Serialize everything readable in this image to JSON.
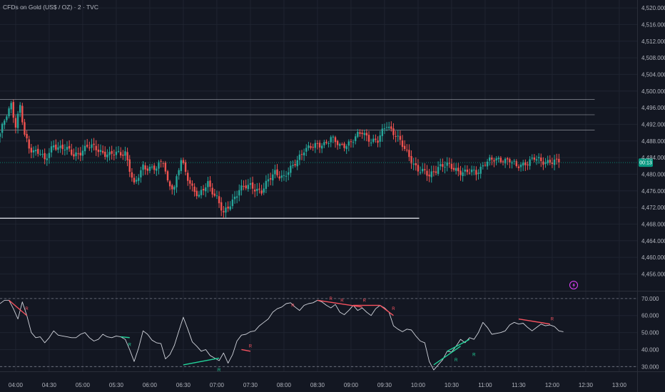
{
  "chart_data": {
    "type": "candlestick",
    "title": "CFDs on Gold (US$ / OZ) · 2 · TVC",
    "colors": {
      "background": "#131722",
      "grid": "#1f2431",
      "up": "#26a69a",
      "down": "#ef5350",
      "level_line": "#d1d4dc",
      "rsi_line": "#d1d4dc",
      "bull_div": "#22d39a",
      "bear_div": "#f7525f",
      "price_tag": "#089981",
      "alert": "#e040fb"
    },
    "price_axis": {
      "ticks": [
        "4,520.000",
        "4,516.000",
        "4,512.000",
        "4,508.000",
        "4,504.000",
        "4,500.000",
        "4,496.000",
        "4,492.000",
        "4,488.000",
        "4,484.000",
        "4,480.000",
        "4,476.000",
        "4,472.000",
        "4,468.000",
        "4,464.000",
        "4,460.000",
        "4,456.000"
      ],
      "range": [
        4452.3,
        4521.9
      ],
      "current_price": 4482.8,
      "current_tag": "00:13"
    },
    "time_axis": {
      "ticks": [
        "04:00",
        "04:30",
        "05:00",
        "05:30",
        "06:00",
        "06:30",
        "07:00",
        "07:30",
        "08:00",
        "08:30",
        "09:00",
        "09:30",
        "10:00",
        "10:30",
        "11:00",
        "11:30",
        "12:00",
        "12:30",
        "13:00"
      ],
      "start": "03:46",
      "end": "13:16"
    },
    "levels": [
      {
        "price": 4498.0,
        "from": "03:46",
        "to": "12:38"
      },
      {
        "price": 4494.3,
        "from": "03:46",
        "to": "12:38"
      },
      {
        "price": 4490.6,
        "from": "03:46",
        "to": "12:38"
      },
      {
        "price": 4469.4,
        "from": "03:46",
        "to": "10:01"
      }
    ],
    "anchors": [
      [
        "03:46",
        4489.4
      ],
      [
        "03:52",
        4494.4
      ],
      [
        "03:56",
        4497.0
      ],
      [
        "04:00",
        4491.9
      ],
      [
        "04:04",
        4496.2
      ],
      [
        "04:08",
        4489.2
      ],
      [
        "04:12",
        4486.2
      ],
      [
        "04:22",
        4485.4
      ],
      [
        "04:26",
        4482.9
      ],
      [
        "04:34",
        4487.1
      ],
      [
        "04:44",
        4486.2
      ],
      [
        "04:52",
        4484.5
      ],
      [
        "05:04",
        4486.6
      ],
      [
        "05:12",
        4486.2
      ],
      [
        "05:24",
        4484.5
      ],
      [
        "05:38",
        4485.4
      ],
      [
        "05:46",
        4477.0
      ],
      [
        "05:54",
        4482.0
      ],
      [
        "06:06",
        4481.2
      ],
      [
        "06:12",
        4483.3
      ],
      [
        "06:16",
        4478.3
      ],
      [
        "06:22",
        4476.6
      ],
      [
        "06:28",
        4483.3
      ],
      [
        "06:32",
        4480.4
      ],
      [
        "06:38",
        4477.0
      ],
      [
        "06:44",
        4474.5
      ],
      [
        "06:52",
        4477.8
      ],
      [
        "07:00",
        4474.5
      ],
      [
        "07:06",
        4470.2
      ],
      [
        "07:12",
        4472.7
      ],
      [
        "07:20",
        4476.6
      ],
      [
        "07:30",
        4477.0
      ],
      [
        "07:40",
        4476.1
      ],
      [
        "07:52",
        4480.4
      ],
      [
        "08:00",
        4479.5
      ],
      [
        "08:08",
        4481.6
      ],
      [
        "08:18",
        4486.2
      ],
      [
        "08:28",
        4486.6
      ],
      [
        "08:36",
        4487.5
      ],
      [
        "08:42",
        4488.7
      ],
      [
        "08:50",
        4486.6
      ],
      [
        "09:00",
        4487.9
      ],
      [
        "09:10",
        4490.0
      ],
      [
        "09:18",
        4488.3
      ],
      [
        "09:24",
        4487.9
      ],
      [
        "09:32",
        4492.0
      ],
      [
        "09:40",
        4489.6
      ],
      [
        "09:48",
        4485.8
      ],
      [
        "10:00",
        4481.2
      ],
      [
        "10:10",
        4479.5
      ],
      [
        "10:18",
        4482.0
      ],
      [
        "10:26",
        4482.0
      ],
      [
        "10:34",
        4481.2
      ],
      [
        "10:42",
        4480.4
      ],
      [
        "10:52",
        4480.4
      ],
      [
        "11:00",
        4482.9
      ],
      [
        "11:08",
        4483.3
      ],
      [
        "11:16",
        4483.7
      ],
      [
        "11:22",
        4483.3
      ],
      [
        "11:28",
        4481.6
      ],
      [
        "11:36",
        4482.9
      ],
      [
        "11:44",
        4483.7
      ],
      [
        "11:50",
        4482.9
      ],
      [
        "11:58",
        4483.3
      ],
      [
        "12:06",
        4482.8
      ]
    ],
    "rsi": {
      "axis_ticks": [
        "70.000",
        "60.000",
        "50.000",
        "40.000",
        "30.000"
      ],
      "range": [
        27.2,
        73.3
      ],
      "levels": [
        70,
        30
      ],
      "series": [
        [
          "03:46",
          67
        ],
        [
          "03:50",
          69
        ],
        [
          "03:54",
          69
        ],
        [
          "03:58",
          64
        ],
        [
          "04:02",
          58
        ],
        [
          "04:06",
          68
        ],
        [
          "04:10",
          60
        ],
        [
          "04:14",
          50
        ],
        [
          "04:18",
          47
        ],
        [
          "04:22",
          47.5
        ],
        [
          "04:26",
          44
        ],
        [
          "04:30",
          47
        ],
        [
          "04:34",
          51
        ],
        [
          "04:38",
          48.5
        ],
        [
          "04:42",
          48
        ],
        [
          "04:46",
          47.5
        ],
        [
          "04:50",
          47
        ],
        [
          "04:54",
          47
        ],
        [
          "04:58",
          49
        ],
        [
          "05:02",
          50
        ],
        [
          "05:06",
          47
        ],
        [
          "05:10",
          45
        ],
        [
          "05:14",
          46
        ],
        [
          "05:18",
          49
        ],
        [
          "05:22",
          47.5
        ],
        [
          "05:26",
          47
        ],
        [
          "05:30",
          48
        ],
        [
          "05:34",
          47.5
        ],
        [
          "05:38",
          46
        ],
        [
          "05:42",
          40
        ],
        [
          "05:46",
          33
        ],
        [
          "05:50",
          41
        ],
        [
          "05:54",
          51
        ],
        [
          "05:58",
          49
        ],
        [
          "06:02",
          45.5
        ],
        [
          "06:06",
          44
        ],
        [
          "06:10",
          43.5
        ],
        [
          "06:14",
          34.5
        ],
        [
          "06:18",
          37
        ],
        [
          "06:22",
          42.5
        ],
        [
          "06:26",
          51
        ],
        [
          "06:30",
          59
        ],
        [
          "06:34",
          52
        ],
        [
          "06:38",
          44.5
        ],
        [
          "06:42",
          42
        ],
        [
          "06:46",
          39
        ],
        [
          "06:50",
          40
        ],
        [
          "06:54",
          36.5
        ],
        [
          "06:58",
          35
        ],
        [
          "07:02",
          33.5
        ],
        [
          "07:06",
          38
        ],
        [
          "07:10",
          32
        ],
        [
          "07:14",
          37
        ],
        [
          "07:18",
          45
        ],
        [
          "07:22",
          48.5
        ],
        [
          "07:26",
          49
        ],
        [
          "07:30",
          50.5
        ],
        [
          "07:34",
          51
        ],
        [
          "07:38",
          54
        ],
        [
          "07:42",
          56
        ],
        [
          "07:46",
          58
        ],
        [
          "07:50",
          62
        ],
        [
          "07:54",
          64
        ],
        [
          "07:58",
          65
        ],
        [
          "08:02",
          67
        ],
        [
          "08:06",
          67.5
        ],
        [
          "08:10",
          65
        ],
        [
          "08:14",
          63
        ],
        [
          "08:18",
          66
        ],
        [
          "08:22",
          67
        ],
        [
          "08:26",
          67.5
        ],
        [
          "08:30",
          69
        ],
        [
          "08:34",
          68
        ],
        [
          "08:38",
          66
        ],
        [
          "08:42",
          64.5
        ],
        [
          "08:46",
          66.5
        ],
        [
          "08:50",
          62
        ],
        [
          "08:54",
          60.5
        ],
        [
          "08:58",
          63
        ],
        [
          "09:02",
          66
        ],
        [
          "09:06",
          63
        ],
        [
          "09:10",
          64.5
        ],
        [
          "09:14",
          62
        ],
        [
          "09:18",
          60
        ],
        [
          "09:22",
          64
        ],
        [
          "09:26",
          66
        ],
        [
          "09:30",
          64.5
        ],
        [
          "09:34",
          62
        ],
        [
          "09:38",
          54
        ],
        [
          "09:42",
          52
        ],
        [
          "09:46",
          50.5
        ],
        [
          "09:50",
          52
        ],
        [
          "09:54",
          51.5
        ],
        [
          "09:58",
          48
        ],
        [
          "10:02",
          45
        ],
        [
          "10:06",
          44
        ],
        [
          "10:10",
          33
        ],
        [
          "10:14",
          28
        ],
        [
          "10:18",
          31
        ],
        [
          "10:22",
          34
        ],
        [
          "10:26",
          39
        ],
        [
          "10:30",
          38.5
        ],
        [
          "10:34",
          42
        ],
        [
          "10:38",
          46
        ],
        [
          "10:42",
          44
        ],
        [
          "10:46",
          47
        ],
        [
          "10:50",
          46
        ],
        [
          "10:54",
          50
        ],
        [
          "10:58",
          56
        ],
        [
          "11:02",
          53
        ],
        [
          "11:06",
          49
        ],
        [
          "11:10",
          49.5
        ],
        [
          "11:14",
          50
        ],
        [
          "11:18",
          51
        ],
        [
          "11:22",
          54.5
        ],
        [
          "11:26",
          56
        ],
        [
          "11:30",
          55
        ],
        [
          "11:34",
          55.5
        ],
        [
          "11:38",
          53
        ],
        [
          "11:42",
          51
        ],
        [
          "11:46",
          53
        ],
        [
          "11:50",
          55
        ],
        [
          "11:54",
          54
        ],
        [
          "11:58",
          54.5
        ],
        [
          "12:02",
          53.5
        ],
        [
          "12:06",
          51
        ],
        [
          "12:10",
          50.5
        ]
      ]
    },
    "divergences": [
      {
        "kind": "bear",
        "from": [
          "03:54",
          69
        ],
        "to": [
          "04:10",
          60
        ]
      },
      {
        "kind": "bull",
        "from": [
          "05:34",
          47.5
        ],
        "to": [
          "05:42",
          47
        ]
      },
      {
        "kind": "bull",
        "from": [
          "06:30",
          31
        ],
        "to": [
          "07:02",
          35
        ]
      },
      {
        "kind": "bear",
        "from": [
          "07:22",
          40
        ],
        "to": [
          "07:30",
          39
        ]
      },
      {
        "kind": "bear",
        "from": [
          "08:30",
          69
        ],
        "to": [
          "09:10",
          65
        ]
      },
      {
        "kind": "bear",
        "from": [
          "09:02",
          66
        ],
        "to": [
          "09:26",
          66
        ]
      },
      {
        "kind": "bear",
        "from": [
          "09:26",
          66
        ],
        "to": [
          "09:38",
          60
        ]
      },
      {
        "kind": "bull",
        "from": [
          "10:14",
          31
        ],
        "to": [
          "10:38",
          42
        ]
      },
      {
        "kind": "bull",
        "from": [
          "10:26",
          39
        ],
        "to": [
          "10:46",
          46
        ]
      },
      {
        "kind": "bear",
        "from": [
          "11:30",
          58
        ],
        "to": [
          "11:58",
          55
        ]
      }
    ],
    "signals": [
      {
        "kind": "bear",
        "label": "R",
        "at": [
          "04:10",
          64
        ]
      },
      {
        "kind": "bull",
        "label": "R",
        "at": [
          "05:42",
          43
        ]
      },
      {
        "kind": "bull",
        "label": "R",
        "at": [
          "07:02",
          28
        ]
      },
      {
        "kind": "bear",
        "label": "R",
        "at": [
          "07:30",
          42
        ]
      },
      {
        "kind": "bear",
        "label": "R",
        "at": [
          "08:08",
          66
        ]
      },
      {
        "kind": "bear",
        "label": "R",
        "at": [
          "08:42",
          70
        ]
      },
      {
        "kind": "bear",
        "label": "R",
        "at": [
          "08:52",
          69
        ]
      },
      {
        "kind": "bear",
        "label": "R",
        "at": [
          "09:12",
          69
        ]
      },
      {
        "kind": "bear",
        "label": "R",
        "at": [
          "09:38",
          64
        ]
      },
      {
        "kind": "bull",
        "label": "R",
        "at": [
          "10:34",
          34
        ]
      },
      {
        "kind": "bull",
        "label": "R",
        "at": [
          "10:50",
          37
        ]
      },
      {
        "kind": "bear",
        "label": "R",
        "at": [
          "12:00",
          58
        ]
      }
    ]
  }
}
